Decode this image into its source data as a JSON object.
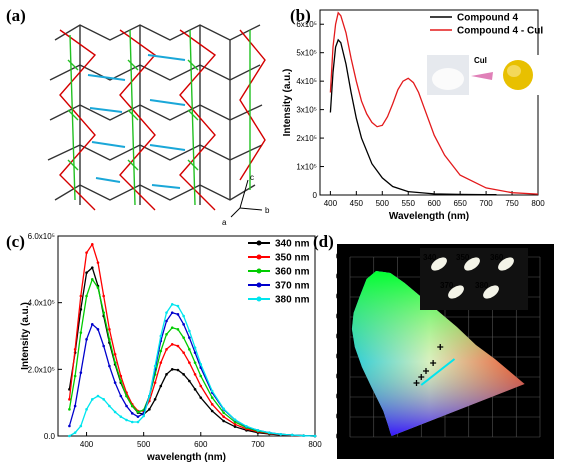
{
  "panels": {
    "a": "(a)",
    "b": "(b)",
    "c": "(c)",
    "d": "(d)"
  },
  "crystal": {
    "axis_labels": {
      "c": "c",
      "b": "b",
      "a": "a"
    }
  },
  "photo_inset": {
    "arrow_label": "CuI"
  },
  "chart_data": [
    {
      "id": "b",
      "type": "line",
      "xlabel": "Wavelength (nm)",
      "ylabel": "Intensity (a.u.)",
      "xlim": [
        380,
        800
      ],
      "ylim": [
        0,
        650000
      ],
      "xticks": [
        400,
        450,
        500,
        550,
        600,
        650,
        700,
        750,
        800
      ],
      "yticks": [
        0,
        100000,
        200000,
        300000,
        400000,
        500000,
        600000
      ],
      "yticklabels": [
        "0",
        "1x10⁵",
        "2x10⁵",
        "3x10⁵",
        "4x10⁵",
        "5x10⁵",
        "6x10⁵"
      ],
      "legend": "top-right",
      "series": [
        {
          "name": "Compound 4",
          "color": "#000000",
          "x": [
            400,
            405,
            410,
            415,
            420,
            430,
            440,
            450,
            460,
            480,
            500,
            520,
            550,
            600,
            650,
            700,
            720
          ],
          "y": [
            290000,
            430000,
            520000,
            545000,
            535000,
            460000,
            360000,
            270000,
            200000,
            110000,
            60000,
            30000,
            12000,
            4000,
            2000,
            1000,
            1000
          ]
        },
        {
          "name": "Compound 4 - CuI",
          "color": "#e31a1c",
          "x": [
            400,
            405,
            410,
            415,
            420,
            430,
            440,
            450,
            460,
            470,
            480,
            490,
            500,
            510,
            520,
            530,
            540,
            550,
            560,
            570,
            580,
            600,
            620,
            650,
            700,
            750,
            800
          ],
          "y": [
            360000,
            520000,
            600000,
            640000,
            630000,
            570000,
            480000,
            400000,
            330000,
            285000,
            255000,
            240000,
            245000,
            275000,
            320000,
            370000,
            400000,
            410000,
            395000,
            360000,
            310000,
            210000,
            140000,
            70000,
            25000,
            8000,
            3000
          ]
        }
      ]
    },
    {
      "id": "c",
      "type": "line",
      "xlabel": "wavelength (nm)",
      "ylabel": "Intensity (a.u.)",
      "xlim": [
        350,
        800
      ],
      "ylim": [
        0,
        600000
      ],
      "xticks": [
        400,
        500,
        600,
        700,
        800
      ],
      "yticks": [
        0,
        200000,
        400000,
        600000
      ],
      "yticklabels": [
        "0.0",
        "2.0x10⁵",
        "4.0x10⁵",
        "6.0x10⁵"
      ],
      "legend": "top-right",
      "x": [
        370,
        380,
        390,
        400,
        410,
        420,
        430,
        440,
        450,
        460,
        470,
        480,
        490,
        500,
        510,
        520,
        530,
        540,
        550,
        560,
        570,
        580,
        590,
        600,
        620,
        640,
        660,
        680,
        700,
        720,
        740,
        760,
        780,
        800
      ],
      "series": [
        {
          "name": "340 nm",
          "color": "#000000",
          "y": [
            140000,
            250000,
            380000,
            490000,
            505000,
            450000,
            360000,
            280000,
            215000,
            160000,
            120000,
            90000,
            70000,
            65000,
            80000,
            110000,
            150000,
            185000,
            200000,
            198000,
            185000,
            165000,
            140000,
            115000,
            75000,
            45000,
            28000,
            17000,
            10000,
            6000,
            3000,
            2000,
            1000,
            0
          ]
        },
        {
          "name": "350 nm",
          "color": "#ff0000",
          "y": [
            110000,
            260000,
            420000,
            550000,
            575000,
            520000,
            420000,
            320000,
            245000,
            180000,
            130000,
            95000,
            75000,
            75000,
            105000,
            160000,
            220000,
            260000,
            275000,
            270000,
            250000,
            220000,
            185000,
            150000,
            95000,
            58000,
            35000,
            21000,
            13000,
            8000,
            4000,
            2000,
            1000,
            0
          ]
        },
        {
          "name": "360 nm",
          "color": "#00cc00",
          "y": [
            80000,
            180000,
            310000,
            420000,
            470000,
            445000,
            370000,
            290000,
            220000,
            165000,
            120000,
            90000,
            72000,
            78000,
            120000,
            185000,
            255000,
            305000,
            325000,
            320000,
            295000,
            260000,
            220000,
            180000,
            115000,
            70000,
            42000,
            25000,
            15000,
            9000,
            5000,
            3000,
            1000,
            0
          ]
        },
        {
          "name": "370 nm",
          "color": "#0000cc",
          "y": [
            30000,
            90000,
            190000,
            290000,
            335000,
            320000,
            270000,
            210000,
            160000,
            120000,
            90000,
            68000,
            58000,
            68000,
            120000,
            200000,
            285000,
            345000,
            370000,
            365000,
            335000,
            295000,
            250000,
            205000,
            130000,
            80000,
            48000,
            28000,
            17000,
            10000,
            5000,
            3000,
            1000,
            0
          ]
        },
        {
          "name": "380 nm",
          "color": "#00e5ee",
          "y": [
            0,
            10000,
            30000,
            80000,
            110000,
            120000,
            110000,
            90000,
            72000,
            58000,
            48000,
            42000,
            42000,
            60000,
            120000,
            210000,
            300000,
            370000,
            395000,
            390000,
            360000,
            315000,
            265000,
            215000,
            135000,
            82000,
            49000,
            29000,
            17000,
            10000,
            5000,
            3000,
            1000,
            0
          ]
        }
      ]
    },
    {
      "id": "d",
      "type": "scatter",
      "xlim": [
        0,
        0.8
      ],
      "ylim": [
        0,
        0.9
      ],
      "xticks": [
        0.0,
        0.1,
        0.2,
        0.3,
        0.4,
        0.5,
        0.6,
        0.7,
        0.8
      ],
      "yticks": [
        0.0,
        0.1,
        0.2,
        0.3,
        0.4,
        0.5,
        0.6,
        0.7,
        0.8,
        0.9
      ],
      "grid": true,
      "series": [
        {
          "color": "#000000",
          "x": [
            0.28,
            0.3,
            0.32,
            0.35,
            0.38
          ],
          "y": [
            0.27,
            0.3,
            0.33,
            0.37,
            0.45
          ]
        }
      ],
      "line": {
        "color": "#00e5ee",
        "x": [
          0.3,
          0.44
        ],
        "y": [
          0.26,
          0.39
        ]
      },
      "inset_labels": [
        "340",
        "350",
        "360",
        "370",
        "380"
      ]
    }
  ]
}
